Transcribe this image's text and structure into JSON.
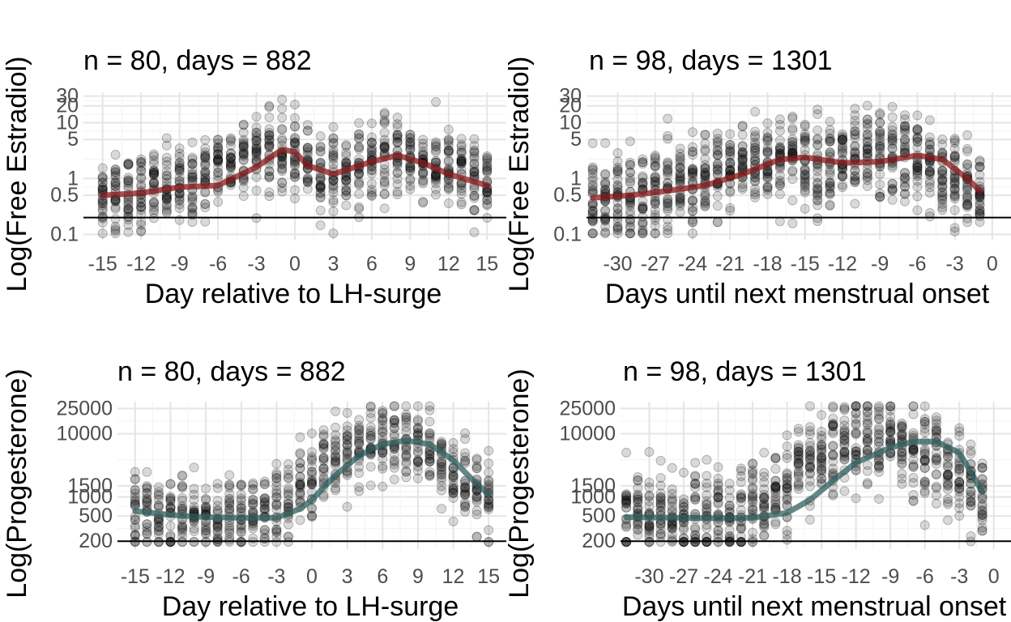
{
  "chart_data": [
    {
      "type": "scatter",
      "panel": "top-left",
      "title": "n = 80, days = 882",
      "xlabel": "Day relative to LH-surge",
      "ylabel": "Log(Free Estradiol)",
      "x_ticks": [
        -15,
        -12,
        -9,
        -6,
        -3,
        0,
        3,
        6,
        9,
        12,
        15
      ],
      "xlim": [
        -16.5,
        16.5
      ],
      "y_scale": "log",
      "y_ticks": [
        0.1,
        0.5,
        1,
        5,
        10,
        20,
        30
      ],
      "ylim": [
        0.08,
        35
      ],
      "reference_line_y": 0.2,
      "grid": true,
      "point_color": "#000000",
      "point_alpha": 0.15,
      "trend_color": "#8b1a1a",
      "trend": {
        "x": [
          -15,
          -12,
          -9,
          -6,
          -3,
          -1,
          0,
          1,
          3,
          6,
          8,
          10,
          12,
          15
        ],
        "y": [
          0.5,
          0.55,
          0.7,
          0.75,
          1.6,
          3.3,
          3.0,
          1.7,
          1.2,
          2.0,
          2.6,
          1.9,
          1.2,
          0.75
        ]
      },
      "points": {
        "x_range": [
          -15,
          15
        ],
        "center": [
          0.5,
          0.55,
          0.7,
          0.75,
          1.6,
          3.3,
          3.0,
          1.7,
          1.2,
          2.0,
          2.6,
          1.9,
          1.2,
          0.75
        ],
        "spread_log10": 0.35,
        "per_day": 28
      }
    },
    {
      "type": "scatter",
      "panel": "top-right",
      "title": "n = 98, days = 1301",
      "xlabel": "Days until next menstrual onset",
      "ylabel": "Log(Free Estradiol)",
      "x_ticks": [
        -30,
        -27,
        -24,
        -21,
        -18,
        -15,
        -12,
        -9,
        -6,
        -3,
        0
      ],
      "xlim": [
        -32.5,
        1.5
      ],
      "y_scale": "log",
      "y_ticks": [
        0.1,
        0.5,
        1,
        5,
        10,
        20,
        30
      ],
      "ylim": [
        0.08,
        35
      ],
      "reference_line_y": 0.2,
      "grid": true,
      "point_color": "#000000",
      "point_alpha": 0.15,
      "trend_color": "#8b1a1a",
      "trend": {
        "x": [
          -32,
          -29,
          -26,
          -23,
          -20,
          -17,
          -15,
          -12,
          -9,
          -6,
          -4,
          -2,
          -1
        ],
        "y": [
          0.45,
          0.5,
          0.6,
          0.75,
          1.2,
          2.2,
          2.4,
          1.9,
          2.0,
          2.6,
          2.2,
          1.0,
          0.6
        ]
      },
      "points": {
        "x_range": [
          -32,
          -1
        ],
        "center": [
          0.45,
          0.5,
          0.6,
          0.75,
          1.2,
          2.2,
          2.4,
          1.9,
          2.0,
          2.6,
          2.2,
          1.0,
          0.6
        ],
        "spread_log10": 0.4,
        "per_day": 30
      }
    },
    {
      "type": "scatter",
      "panel": "bottom-left",
      "title": "n = 80, days = 882",
      "xlabel": "Day relative to LH-surge",
      "ylabel": "Log(Progesterone)",
      "x_ticks": [
        -15,
        -12,
        -9,
        -6,
        -3,
        0,
        3,
        6,
        9,
        12,
        15
      ],
      "xlim": [
        -16.5,
        16.5
      ],
      "y_scale": "log",
      "y_ticks": [
        200,
        500,
        1000,
        1500,
        10000,
        25000
      ],
      "ylim": [
        150,
        32000
      ],
      "reference_line_y": 200,
      "grid": true,
      "point_color": "#000000",
      "point_alpha": 0.15,
      "trend_color": "#2f5f5f",
      "trend": {
        "x": [
          -15,
          -12,
          -9,
          -6,
          -3,
          -1,
          0,
          2,
          4,
          6,
          8,
          10,
          12,
          14,
          15
        ],
        "y": [
          600,
          520,
          480,
          470,
          470,
          650,
          900,
          2200,
          4500,
          6800,
          7800,
          6800,
          3800,
          1600,
          1100
        ]
      },
      "points": {
        "x_range": [
          -15,
          15
        ],
        "center": [
          600,
          520,
          480,
          470,
          470,
          650,
          900,
          2200,
          4500,
          6800,
          7800,
          6800,
          3800,
          1600,
          1100
        ],
        "spread_log10": 0.3,
        "per_day": 24
      }
    },
    {
      "type": "scatter",
      "panel": "bottom-right",
      "title": "n = 98, days = 1301",
      "xlabel": "Days until next menstrual onset",
      "ylabel": "Log(Progesterone)",
      "x_ticks": [
        -30,
        -27,
        -24,
        -21,
        -18,
        -15,
        -12,
        -9,
        -6,
        -3,
        0
      ],
      "xlim": [
        -32.5,
        1.5
      ],
      "y_scale": "log",
      "y_ticks": [
        200,
        500,
        1000,
        1500,
        10000,
        25000
      ],
      "ylim": [
        150,
        32000
      ],
      "reference_line_y": 200,
      "grid": true,
      "point_color": "#000000",
      "point_alpha": 0.15,
      "trend_color": "#2f5f5f",
      "trend": {
        "x": [
          -32,
          -28,
          -24,
          -21,
          -18,
          -16,
          -14,
          -12,
          -9,
          -7,
          -5,
          -3,
          -2,
          -1
        ],
        "y": [
          480,
          470,
          460,
          470,
          560,
          900,
          1800,
          3500,
          6000,
          7500,
          7500,
          5000,
          2500,
          1200
        ]
      },
      "points": {
        "x_range": [
          -32,
          -1
        ],
        "center": [
          480,
          470,
          460,
          470,
          560,
          900,
          1800,
          3500,
          6000,
          7500,
          7500,
          5000,
          2500,
          1200
        ],
        "spread_log10": 0.35,
        "per_day": 26
      }
    }
  ]
}
